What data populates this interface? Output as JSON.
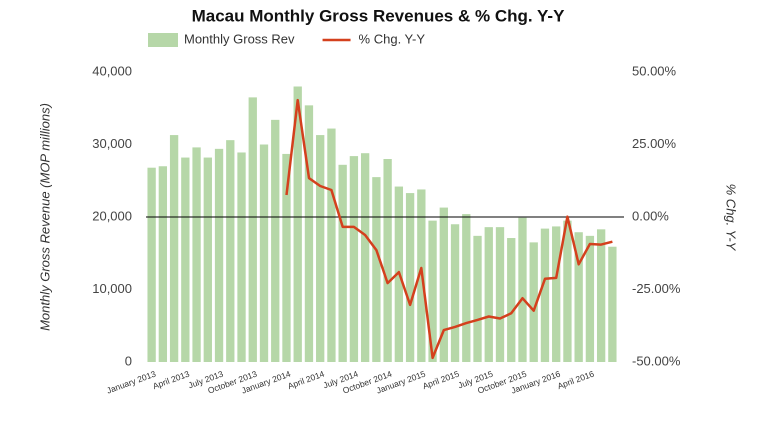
{
  "chart_data": {
    "type": "bar_line",
    "title": "Macau Monthly Gross Revenues & % Chg. Y-Y",
    "y_label": "Monthly Gross Revenue (MOP millions)",
    "y2_label": "% Chg. Y-Y",
    "categories": [
      "January 2013",
      null,
      null,
      "April 2013",
      null,
      null,
      "July 2013",
      null,
      null,
      "October 2013",
      null,
      null,
      "January 2014",
      null,
      null,
      "April 2014",
      null,
      null,
      "July 2014",
      null,
      null,
      "October 2014",
      null,
      null,
      "January 2015",
      null,
      null,
      "April 2015",
      null,
      null,
      "July 2015",
      null,
      null,
      "October 2015",
      null,
      null,
      "January 2016",
      null,
      null,
      "April 2016",
      null,
      null
    ],
    "series": [
      {
        "name": "Monthly Gross Rev",
        "color": "#b6d7a8",
        "axis": "y",
        "values": [
          26800,
          27000,
          31300,
          28200,
          29600,
          28200,
          29400,
          30600,
          28900,
          36500,
          30000,
          33400,
          28700,
          38000,
          35400,
          31300,
          32200,
          27200,
          28400,
          28800,
          25500,
          28000,
          24200,
          23300,
          23800,
          19500,
          21300,
          19000,
          20400,
          17400,
          18600,
          18600,
          17100,
          19900,
          16500,
          18400,
          18700,
          19500,
          17900,
          17400,
          18300,
          15900
        ]
      },
      {
        "name": "% Chg. Y-Y",
        "color": "#d4401d",
        "axis": "y2",
        "values": [
          null,
          null,
          null,
          null,
          null,
          null,
          null,
          null,
          null,
          null,
          null,
          null,
          7.6,
          40.3,
          13.4,
          10.7,
          9.3,
          -3.4,
          -3.4,
          -6.2,
          -11.4,
          -22.8,
          -19.0,
          -30.3,
          -17.6,
          -48.6,
          -39.0,
          -37.9,
          -36.6,
          -35.5,
          -34.3,
          -35.0,
          -33.2,
          -28.0,
          -32.3,
          -21.3,
          -21.0,
          0.1,
          -16.3,
          -9.3,
          -9.5,
          -8.5
        ]
      }
    ],
    "ylim": [
      0,
      40000
    ],
    "yticks": [
      0,
      {
        "value": 10000,
        "label": "10,000"
      },
      {
        "value": 20000,
        "label": "20,000"
      },
      {
        "value": 30000,
        "label": "30,000"
      },
      {
        "value": 40000,
        "label": "40,000"
      }
    ],
    "y2lim": [
      -50,
      50
    ],
    "y2ticks": [
      {
        "value": -50,
        "label": "-50.00%"
      },
      {
        "value": -25,
        "label": "-25.00%"
      },
      {
        "value": 0,
        "label": "0.00%"
      },
      {
        "value": 25,
        "label": "25.00%"
      },
      {
        "value": 50,
        "label": "50.00%"
      }
    ],
    "legend": "top-left"
  }
}
